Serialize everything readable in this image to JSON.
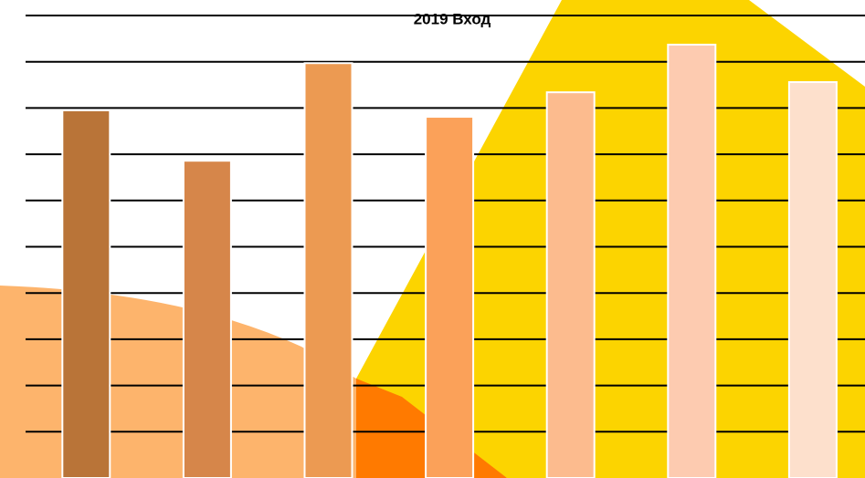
{
  "chart_data": {
    "type": "bar",
    "title": "2019 Вход",
    "categories": [
      null,
      null,
      null,
      null,
      null,
      null,
      null
    ],
    "values": [
      7.95,
      6.86,
      8.97,
      7.81,
      8.34,
      9.37,
      8.56
    ],
    "colors": [
      "#b97438",
      "#d6864a",
      "#ec9a52",
      "#fba159",
      "#fcbb8e",
      "#fdcbb0",
      "#fde0cc"
    ],
    "ylim": [
      0,
      10
    ],
    "yticks": [
      1,
      2,
      3,
      4,
      5,
      6,
      7,
      8,
      9,
      10
    ],
    "grid": true
  }
}
